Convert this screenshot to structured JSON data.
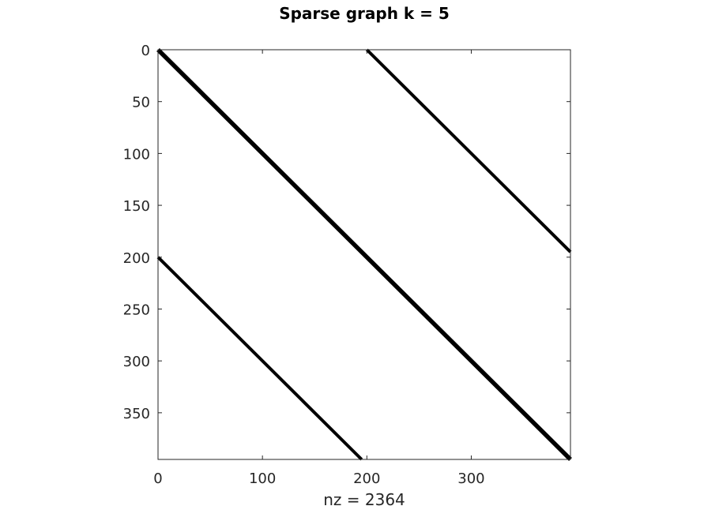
{
  "chart_data": {
    "type": "spy",
    "title": "Sparse graph k = 5",
    "xlabel": "nz = 2364",
    "ylabel": "",
    "xlim": [
      0,
      395
    ],
    "ylim": [
      0,
      395
    ],
    "y_axis_direction": "down",
    "grid": false,
    "legend": null,
    "x_ticks": [
      0,
      100,
      200,
      300
    ],
    "x_tick_labels": [
      "0",
      "100",
      "200",
      "300"
    ],
    "y_ticks": [
      0,
      50,
      100,
      150,
      200,
      250,
      300,
      350
    ],
    "y_tick_labels": [
      "0",
      "50",
      "100",
      "150",
      "200",
      "250",
      "300",
      "350"
    ],
    "marker_color": "#000000",
    "bands": [
      {
        "name": "main diagonal",
        "start": [
          0,
          0
        ],
        "end": [
          395,
          395
        ],
        "thickness": "thick"
      },
      {
        "name": "upper diagonal",
        "start": [
          200,
          0
        ],
        "end": [
          395,
          195
        ],
        "thickness": "medium"
      },
      {
        "name": "lower diagonal",
        "start": [
          0,
          200
        ],
        "end": [
          195,
          395
        ],
        "thickness": "medium"
      }
    ]
  }
}
